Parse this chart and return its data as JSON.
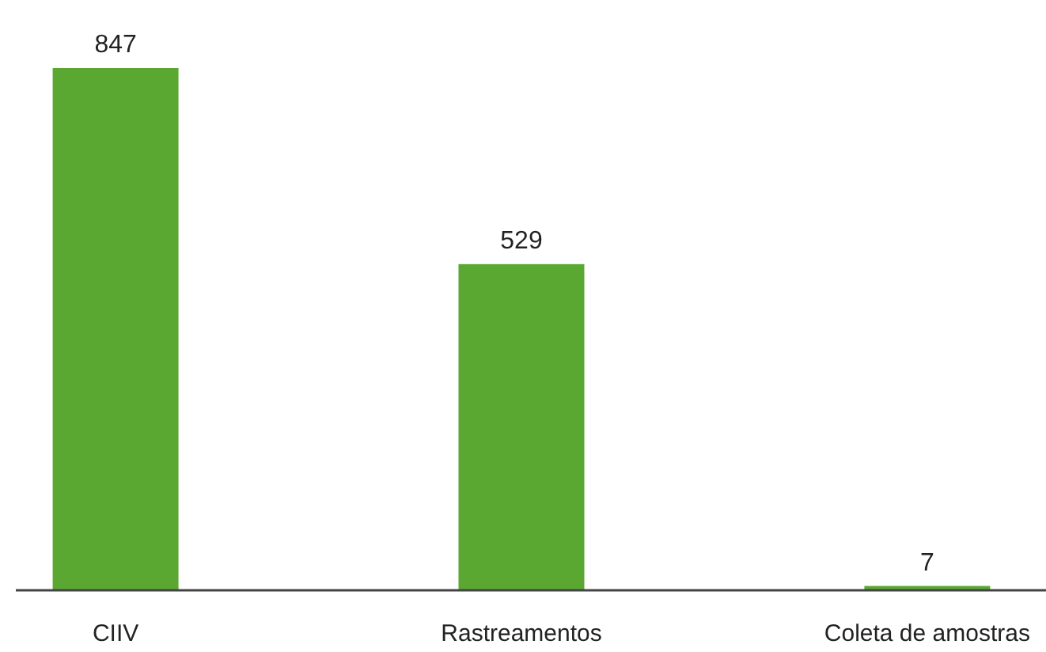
{
  "chart_data": {
    "type": "bar",
    "categories": [
      "CIIV",
      "Rastreamentos",
      "Coleta de amostras"
    ],
    "values": [
      847,
      529,
      7
    ],
    "color": "#5aa832",
    "data_labels": true
  }
}
